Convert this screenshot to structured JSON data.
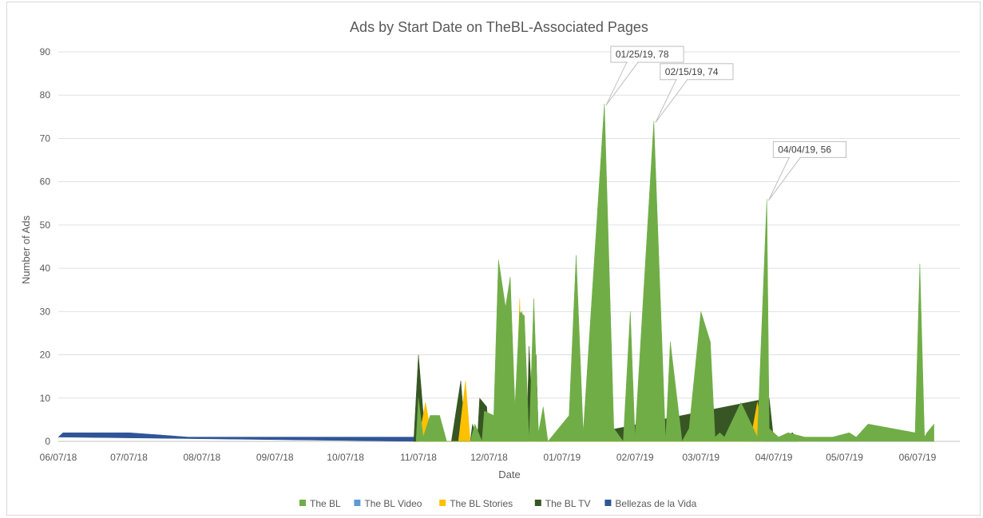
{
  "chart_data": {
    "type": "area",
    "title": "Ads by Start Date on TheBL-Associated Pages",
    "xlabel": "Date",
    "ylabel": "Number of Ads",
    "ylim": [
      0,
      90
    ],
    "yticks": [
      0,
      10,
      20,
      30,
      40,
      50,
      60,
      70,
      80,
      90
    ],
    "xlim": [
      "2018-06-07",
      "2019-06-25"
    ],
    "xticks": [
      "06/07/18",
      "07/07/18",
      "08/07/18",
      "09/07/18",
      "10/07/18",
      "11/07/18",
      "12/07/18",
      "01/07/19",
      "02/07/19",
      "03/07/19",
      "04/07/19",
      "05/07/19",
      "06/07/19"
    ],
    "xtick_dates": [
      "2018-06-07",
      "2018-07-07",
      "2018-08-07",
      "2018-09-07",
      "2018-10-07",
      "2018-11-07",
      "2018-12-07",
      "2019-01-07",
      "2019-02-07",
      "2019-03-07",
      "2019-04-07",
      "2019-05-07",
      "2019-06-07"
    ],
    "grid": "horizontal",
    "legend_position": "bottom",
    "series": [
      {
        "name": "Bellezas de la Vida",
        "color": "#2f5597",
        "points": [
          [
            "2018-06-07",
            1
          ],
          [
            "2018-06-09",
            2
          ],
          [
            "2018-06-15",
            2
          ],
          [
            "2018-07-01",
            2
          ],
          [
            "2018-07-07",
            2
          ],
          [
            "2018-07-20",
            1.5
          ],
          [
            "2018-08-01",
            1
          ],
          [
            "2018-08-15",
            1
          ],
          [
            "2018-09-15",
            1
          ],
          [
            "2018-10-15",
            1
          ],
          [
            "2018-11-07",
            1
          ],
          [
            "2018-11-07",
            0
          ]
        ]
      },
      {
        "name": "The BL TV",
        "color": "#375623",
        "points": [
          [
            "2018-11-05",
            0
          ],
          [
            "2018-11-07",
            20
          ],
          [
            "2018-11-10",
            0
          ],
          [
            "2018-11-21",
            0
          ],
          [
            "2018-11-25",
            14
          ],
          [
            "2018-11-27",
            0
          ],
          [
            "2018-11-29",
            0
          ],
          [
            "2018-11-30",
            4
          ],
          [
            "2018-12-02",
            0
          ],
          [
            "2018-12-03",
            10
          ],
          [
            "2018-12-06",
            8
          ],
          [
            "2018-12-07",
            0
          ],
          [
            "2018-12-19",
            0
          ],
          [
            "2018-12-21",
            30
          ],
          [
            "2018-12-23",
            0
          ],
          [
            "2018-12-24",
            22
          ],
          [
            "2018-12-26",
            0
          ],
          [
            "2018-12-27",
            20
          ],
          [
            "2018-12-28",
            0
          ],
          [
            "2019-01-03",
            0
          ],
          [
            "2019-04-05",
            10
          ],
          [
            "2019-04-07",
            0
          ],
          [
            "2019-04-15",
            2
          ],
          [
            "2019-04-17",
            0
          ]
        ]
      },
      {
        "name": "The BL Stories",
        "color": "#ffc000",
        "points": [
          [
            "2018-11-07",
            0
          ],
          [
            "2018-11-10",
            9
          ],
          [
            "2018-11-13",
            0
          ],
          [
            "2018-11-24",
            0
          ],
          [
            "2018-11-27",
            14
          ],
          [
            "2018-11-29",
            0
          ],
          [
            "2018-12-18",
            0
          ],
          [
            "2018-12-20",
            33
          ],
          [
            "2018-12-22",
            0
          ],
          [
            "2019-03-28",
            0
          ],
          [
            "2019-03-31",
            9
          ],
          [
            "2019-04-03",
            0
          ]
        ]
      },
      {
        "name": "The BL Video",
        "color": "#5b9bd5",
        "points": []
      },
      {
        "name": "The BL",
        "color": "#70ad47",
        "points": [
          [
            "2018-11-06",
            0
          ],
          [
            "2018-11-07",
            10
          ],
          [
            "2018-11-09",
            1
          ],
          [
            "2018-11-12",
            6
          ],
          [
            "2018-11-16",
            6
          ],
          [
            "2018-11-19",
            0
          ],
          [
            "2018-11-29",
            0
          ],
          [
            "2018-12-01",
            4
          ],
          [
            "2018-12-04",
            0
          ],
          [
            "2018-12-05",
            7
          ],
          [
            "2018-12-09",
            6
          ],
          [
            "2018-12-11",
            42
          ],
          [
            "2018-12-14",
            31
          ],
          [
            "2018-12-16",
            38
          ],
          [
            "2018-12-18",
            8
          ],
          [
            "2018-12-20",
            30
          ],
          [
            "2018-12-22",
            29
          ],
          [
            "2018-12-24",
            0
          ],
          [
            "2018-12-26",
            33
          ],
          [
            "2018-12-28",
            2
          ],
          [
            "2018-12-30",
            8
          ],
          [
            "2019-01-01",
            0
          ],
          [
            "2019-01-10",
            6
          ],
          [
            "2019-01-13",
            43
          ],
          [
            "2019-01-16",
            2
          ],
          [
            "2019-01-25",
            78
          ],
          [
            "2019-01-29",
            3
          ],
          [
            "2019-02-02",
            0
          ],
          [
            "2019-02-05",
            30
          ],
          [
            "2019-02-07",
            1
          ],
          [
            "2019-02-15",
            74
          ],
          [
            "2019-02-20",
            0
          ],
          [
            "2019-02-22",
            23
          ],
          [
            "2019-02-27",
            0
          ],
          [
            "2019-03-02",
            3
          ],
          [
            "2019-03-07",
            30
          ],
          [
            "2019-03-11",
            23
          ],
          [
            "2019-03-13",
            1
          ],
          [
            "2019-03-15",
            2
          ],
          [
            "2019-03-17",
            1
          ],
          [
            "2019-03-24",
            9
          ],
          [
            "2019-03-31",
            1
          ],
          [
            "2019-04-04",
            56
          ],
          [
            "2019-04-05",
            3
          ],
          [
            "2019-04-09",
            1
          ],
          [
            "2019-04-13",
            2
          ],
          [
            "2019-04-20",
            1
          ],
          [
            "2019-05-02",
            1
          ],
          [
            "2019-05-09",
            2
          ],
          [
            "2019-05-12",
            1
          ],
          [
            "2019-05-17",
            4
          ],
          [
            "2019-06-06",
            2
          ],
          [
            "2019-06-08",
            41
          ],
          [
            "2019-06-10",
            1
          ],
          [
            "2019-06-11",
            2
          ],
          [
            "2019-06-14",
            4
          ],
          [
            "2019-06-14",
            0
          ]
        ]
      }
    ],
    "legend": [
      "The BL",
      "The BL Video",
      "The BL Stories",
      "The BL TV",
      "Bellezas de la Vida"
    ],
    "annotations": [
      {
        "date": "2019-01-25",
        "value": 78,
        "label": "01/25/19, 78"
      },
      {
        "date": "2019-02-15",
        "value": 74,
        "label": "02/15/19, 74"
      },
      {
        "date": "2019-04-04",
        "value": 56,
        "label": "04/04/19, 56"
      }
    ]
  }
}
